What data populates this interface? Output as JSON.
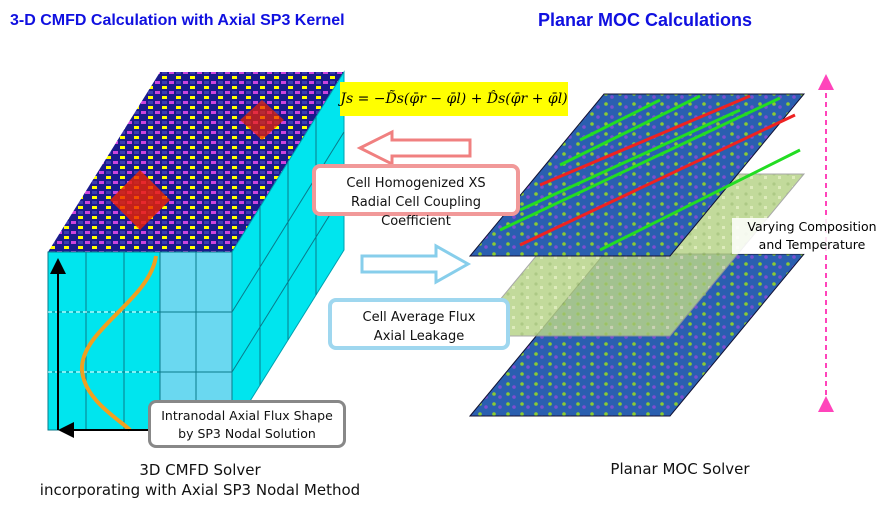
{
  "titles": {
    "left": "3-D CMFD Calculation with Axial SP3 Kernel",
    "right": "Planar MOC Calculations"
  },
  "equation": "Js = −D̃s(φ̄r − φ̄l) + D̂s(φ̄r + φ̄l)",
  "boxes": {
    "xs": {
      "line1": "Cell Homogenized XS",
      "line2": "Radial Cell Coupling Coefficient"
    },
    "flux": {
      "line1": "Cell Average Flux",
      "line2": "Axial Leakage"
    },
    "shape": {
      "line1": "Intranodal Axial Flux Shape",
      "line2": "by SP3 Nodal Solution"
    }
  },
  "side_note": {
    "line1": "Varying Composition",
    "line2": "and Temperature"
  },
  "captions": {
    "left_line1": "3D CMFD Solver",
    "left_line2": "incorporating with Axial SP3 Nodal Method",
    "right": "Planar MOC Solver"
  },
  "colors": {
    "title": "#1010e0",
    "cube_side": "#00e5ee",
    "cube_top": "#1a1a8c",
    "fuel_pink": "#cc44dd",
    "fuel_yellow": "#ffff00",
    "fuel_red": "#ee2200",
    "moc_plane": "#1e6fb5",
    "ray_green": "#22dd22",
    "ray_red": "#ee2222",
    "arrow_pink": "#f08080",
    "arrow_blue": "#87ceeb",
    "curve_orange": "#f0a020",
    "double_arrow": "#ff44bb"
  }
}
